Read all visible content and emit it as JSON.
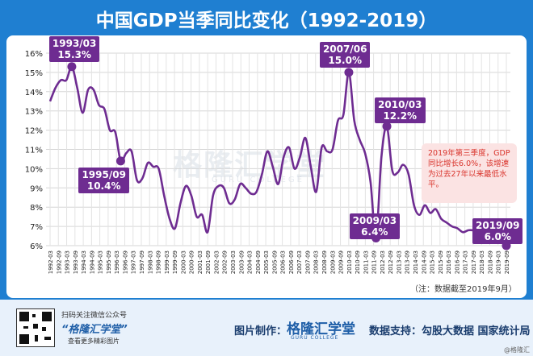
{
  "title": "中国GDP当季同比变化（1992-2019）",
  "watermark": {
    "main": "格隆汇学堂",
    "sub": "GURU COLLEGE"
  },
  "note": "2019年第三季度，GDP同比增长6.0%，该增速为过去27年以来最低水平。",
  "footnote": "（注：数据截至2019年9月）",
  "footer": {
    "qr_line1": "扫码关注微信公众号",
    "qr_line2": "“格隆汇学堂”",
    "qr_line3": "查看更多精彩图片",
    "maker_label": "图片制作：",
    "brand": "格隆汇学堂",
    "brand_sub": "GURU COLLEGE",
    "source": "数据支持：勾股大数据 国家统计局",
    "corner": "@格隆汇"
  },
  "colors": {
    "background": "#1f7fd1",
    "line": "#6e2c91",
    "note_text": "#d9342c",
    "note_bg": "#fbe3e3"
  },
  "chart_data": {
    "type": "line",
    "title": "中国GDP当季同比变化（1992-2019）",
    "y_unit": "%",
    "ylim": [
      6,
      16
    ],
    "yticks": [
      "6%",
      "7%",
      "8%",
      "9%",
      "10%",
      "11%",
      "12%",
      "13%",
      "14%",
      "15%",
      "16%"
    ],
    "xticks": [
      "1992-03",
      "1992-09",
      "1993-03",
      "1993-09",
      "1994-03",
      "1994-09",
      "1995-03",
      "1995-09",
      "1996-03",
      "1996-09",
      "1997-03",
      "1997-09",
      "1998-03",
      "1998-09",
      "1999-03",
      "1999-09",
      "2000-03",
      "2000-09",
      "2001-03",
      "2001-09",
      "2002-03",
      "2002-09",
      "2003-03",
      "2003-09",
      "2004-03",
      "2004-09",
      "2005-03",
      "2005-09",
      "2006-03",
      "2006-09",
      "2007-03",
      "2007-09",
      "2008-03",
      "2008-09",
      "2009-03",
      "2009-09",
      "2010-03",
      "2010-09",
      "2011-03",
      "2011-09",
      "2012-03",
      "2012-09",
      "2013-03",
      "2013-09",
      "2014-03",
      "2014-09",
      "2015-03",
      "2015-09",
      "2016-03",
      "2016-09",
      "2017-03",
      "2017-09",
      "2018-03",
      "2018-09",
      "2019-03",
      "2019-09"
    ],
    "grid": true,
    "series": [
      {
        "values": [
          13.5,
          14.2,
          14.6,
          14.6,
          15.3,
          14.2,
          12.9,
          14.1,
          14.1,
          13.3,
          13.1,
          12.0,
          11.9,
          10.4,
          10.8,
          10.9,
          9.4,
          9.5,
          10.3,
          10.1,
          10.0,
          8.6,
          7.4,
          6.9,
          8.2,
          9.1,
          8.6,
          7.5,
          7.6,
          6.7,
          8.6,
          9.1,
          9.0,
          8.2,
          8.4,
          9.2,
          9.0,
          8.7,
          8.8,
          9.7,
          10.9,
          10.1,
          9.2,
          10.6,
          11.1,
          10.0,
          10.6,
          11.6,
          10.1,
          8.8,
          11.1,
          10.9,
          11.0,
          12.5,
          12.8,
          15.0,
          12.5,
          11.5,
          10.8,
          9.3,
          6.4,
          10.6,
          12.2,
          9.9,
          9.8,
          10.2,
          9.7,
          8.1,
          7.6,
          8.1,
          7.7,
          7.9,
          7.4,
          7.2,
          7.0,
          6.9,
          6.7,
          6.8,
          6.8,
          6.8,
          6.7,
          6.6,
          6.4,
          6.2,
          6.0
        ]
      }
    ],
    "annotations": [
      {
        "date": "1993/03",
        "value": "15.3%"
      },
      {
        "date": "1995/09",
        "value": "10.4%"
      },
      {
        "date": "2007/06",
        "value": "15.0%"
      },
      {
        "date": "2009/03",
        "value": "6.4%"
      },
      {
        "date": "2010/03",
        "value": "12.2%"
      },
      {
        "date": "2019/09",
        "value": "6.0%"
      }
    ]
  }
}
